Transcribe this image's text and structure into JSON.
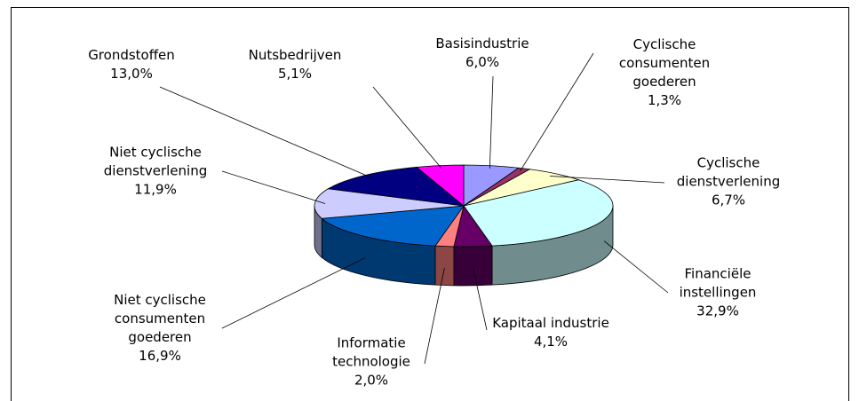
{
  "chart_data": {
    "type": "pie3d",
    "categories": [
      "Basisindustrie",
      "Cyclische consumenten goederen",
      "Cyclische dienstverlening",
      "Financiële instellingen",
      "Kapitaal industrie",
      "Informatie technologie",
      "Niet cyclische consumenten goederen",
      "Niet cyclische dienstverlening",
      "Grondstoffen",
      "Nutsbedrijven"
    ],
    "values": [
      6.0,
      1.3,
      6.7,
      32.9,
      4.1,
      2.0,
      16.9,
      11.9,
      13.0,
      5.1
    ],
    "value_labels": [
      "6,0%",
      "1,3%",
      "6,7%",
      "32,9%",
      "4,1%",
      "2,0%",
      "16,9%",
      "11,9%",
      "13,0%",
      "5,1%"
    ],
    "colors": [
      "#9999ff",
      "#993366",
      "#ffffcc",
      "#ccffff",
      "#660066",
      "#ff8080",
      "#0066cc",
      "#ccccff",
      "#000080",
      "#ff00ff"
    ]
  }
}
